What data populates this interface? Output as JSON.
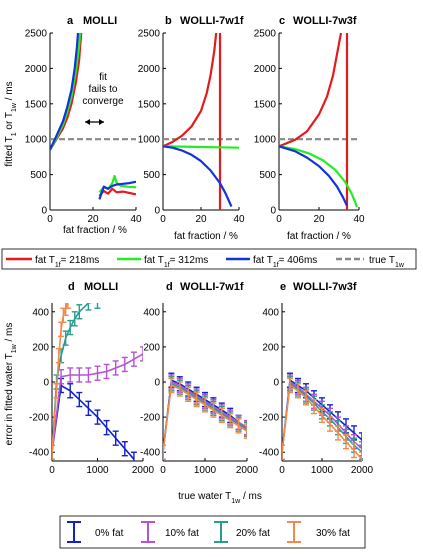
{
  "colors": {
    "red": "#e41a1c",
    "green": "#22ee22",
    "blue": "#1133dd",
    "gray": "#888888",
    "dblue": "#1122cc",
    "purple": "#b552d6",
    "teal": "#2a9d8f",
    "orange": "#f4894b"
  },
  "top_panels": {
    "ylabel_main": "fitted T",
    "ylabel_sub1": "1",
    "ylabel_mid": " or T",
    "ylabel_sub2": "1w",
    "ylabel_tail": " / ms",
    "xlabel": "fat fraction / %",
    "annotation": [
      "fit",
      "fails to",
      "converge"
    ]
  },
  "legend_top": [
    {
      "label": "fat T",
      "sub": "1f",
      "value": "= 218ms",
      "color": "red"
    },
    {
      "label": "fat T",
      "sub": "1f",
      "value": "= 312ms",
      "color": "green"
    },
    {
      "label": "fat T",
      "sub": "1f",
      "value": "= 406ms",
      "color": "blue"
    },
    {
      "label": "true T",
      "sub": "1w",
      "value": "",
      "color": "gray"
    }
  ],
  "bottom_panels": {
    "ylabel_main": "error in fitted water T",
    "ylabel_sub": "1w",
    "ylabel_tail": " / ms",
    "xlabel_main": "true water T",
    "xlabel_sub": "1w",
    "xlabel_tail": " / ms"
  },
  "legend_bottom": [
    {
      "label": "0% fat",
      "color": "dblue"
    },
    {
      "label": "10% fat",
      "color": "purple"
    },
    {
      "label": "20% fat",
      "color": "teal"
    },
    {
      "label": "30% fat",
      "color": "orange"
    }
  ],
  "chart_data": [
    {
      "type": "line",
      "panel": "a",
      "title": "MOLLI",
      "xlabel": "fat fraction / %",
      "ylabel": "fitted T1 or T1w / ms",
      "xlim": [
        0,
        40
      ],
      "ylim": [
        0,
        2500
      ],
      "xticks": [
        0,
        20,
        40
      ],
      "yticks": [
        0,
        500,
        1000,
        1500,
        2000,
        2500
      ],
      "reference": {
        "name": "true T1w",
        "y": 1000
      },
      "series": [
        {
          "name": "fat T1f = 218ms",
          "segments": [
            [
              [
                0,
                850
              ],
              [
                3,
                1000
              ],
              [
                6,
                1150
              ],
              [
                8,
                1300
              ],
              [
                10,
                1500
              ],
              [
                12,
                1800
              ],
              [
                13.5,
                2100
              ],
              [
                14.5,
                2500
              ]
            ],
            [
              [
                23,
                200
              ],
              [
                25,
                270
              ],
              [
                27,
                230
              ],
              [
                29,
                300
              ],
              [
                31,
                250
              ],
              [
                34,
                260
              ],
              [
                37,
                240
              ],
              [
                40,
                220
              ]
            ]
          ]
        },
        {
          "name": "fat T1f = 312ms",
          "segments": [
            [
              [
                0,
                850
              ],
              [
                3,
                1020
              ],
              [
                6,
                1200
              ],
              [
                8,
                1380
              ],
              [
                10,
                1600
              ],
              [
                12,
                1950
              ],
              [
                13.5,
                2300
              ],
              [
                14,
                2500
              ]
            ],
            [
              [
                23,
                250
              ],
              [
                25,
                320
              ],
              [
                27,
                300
              ],
              [
                29,
                380
              ],
              [
                30,
                480
              ],
              [
                31,
                380
              ],
              [
                33,
                340
              ],
              [
                36,
                330
              ],
              [
                40,
                320
              ]
            ]
          ]
        },
        {
          "name": "fat T1f = 406ms",
          "segments": [
            [
              [
                0,
                850
              ],
              [
                3,
                1050
              ],
              [
                6,
                1250
              ],
              [
                8,
                1450
              ],
              [
                10,
                1700
              ],
              [
                11.5,
                2000
              ],
              [
                12.5,
                2300
              ],
              [
                13,
                2500
              ]
            ],
            [
              [
                23,
                150
              ],
              [
                25,
                330
              ],
              [
                27,
                300
              ],
              [
                29,
                340
              ],
              [
                31,
                360
              ],
              [
                34,
                370
              ],
              [
                37,
                380
              ],
              [
                40,
                400
              ]
            ]
          ]
        }
      ]
    },
    {
      "type": "line",
      "panel": "b",
      "title": "WOLLI-7w1f",
      "xlabel": "fat fraction / %",
      "xlim": [
        0,
        40
      ],
      "ylim": [
        0,
        2500
      ],
      "xticks": [
        0,
        20,
        40
      ],
      "yticks": [
        0,
        500,
        1000,
        1500,
        2000,
        2500
      ],
      "reference": {
        "name": "true T1w",
        "y": 1000
      },
      "series": [
        {
          "name": "fat T1f = 218ms",
          "segments": [
            [
              [
                0,
                900
              ],
              [
                5,
                960
              ],
              [
                10,
                1050
              ],
              [
                15,
                1180
              ],
              [
                20,
                1400
              ],
              [
                23,
                1650
              ],
              [
                25,
                1900
              ],
              [
                27,
                2250
              ],
              [
                28,
                2500
              ]
            ],
            [
              [
                30,
                2500
              ],
              [
                30,
                0
              ]
            ]
          ]
        },
        {
          "name": "fat T1f = 312ms",
          "segments": [
            [
              [
                0,
                900
              ],
              [
                10,
                895
              ],
              [
                20,
                890
              ],
              [
                30,
                885
              ],
              [
                40,
                880
              ]
            ]
          ]
        },
        {
          "name": "fat T1f = 406ms",
          "segments": [
            [
              [
                0,
                900
              ],
              [
                5,
                880
              ],
              [
                10,
                840
              ],
              [
                15,
                780
              ],
              [
                20,
                690
              ],
              [
                25,
                560
              ],
              [
                30,
                380
              ],
              [
                33,
                230
              ],
              [
                36,
                50
              ]
            ]
          ]
        }
      ]
    },
    {
      "type": "line",
      "panel": "c",
      "title": "WOLLI-7w3f",
      "xlabel": "fat fraction / %",
      "xlim": [
        0,
        40
      ],
      "ylim": [
        0,
        2500
      ],
      "xticks": [
        0,
        20,
        40
      ],
      "yticks": [
        0,
        500,
        1000,
        1500,
        2000,
        2500
      ],
      "reference": {
        "name": "true T1w",
        "y": 1000
      },
      "series": [
        {
          "name": "fat T1f = 218ms",
          "segments": [
            [
              [
                0,
                900
              ],
              [
                8,
                990
              ],
              [
                14,
                1110
              ],
              [
                20,
                1350
              ],
              [
                24,
                1600
              ],
              [
                27,
                1900
              ],
              [
                29,
                2200
              ],
              [
                31,
                2500
              ]
            ],
            [
              [
                34,
                2500
              ],
              [
                34,
                0
              ]
            ]
          ]
        },
        {
          "name": "fat T1f = 312ms",
          "segments": [
            [
              [
                0,
                900
              ],
              [
                8,
                860
              ],
              [
                15,
                800
              ],
              [
                22,
                700
              ],
              [
                28,
                570
              ],
              [
                33,
                400
              ],
              [
                36,
                250
              ],
              [
                38,
                120
              ],
              [
                39,
                40
              ]
            ]
          ]
        },
        {
          "name": "fat T1f = 406ms",
          "segments": [
            [
              [
                0,
                900
              ],
              [
                8,
                830
              ],
              [
                14,
                740
              ],
              [
                20,
                620
              ],
              [
                25,
                480
              ],
              [
                29,
                330
              ],
              [
                32,
                180
              ],
              [
                34,
                60
              ]
            ]
          ]
        }
      ]
    },
    {
      "type": "line",
      "panel": "d",
      "title": "MOLLI",
      "ylabel": "error in fitted water T1w / ms",
      "xlim": [
        0,
        2000
      ],
      "ylim": [
        -450,
        450
      ],
      "xticks": [
        0,
        1000,
        2000
      ],
      "yticks": [
        -400,
        -200,
        0,
        200,
        400
      ],
      "series": [
        {
          "name": "0% fat",
          "x": [
            0,
            200,
            400,
            600,
            800,
            1000,
            1200,
            1400,
            1600,
            1800
          ],
          "y": [
            -400,
            -20,
            -50,
            -100,
            -150,
            -200,
            -260,
            -320,
            -380,
            -440
          ]
        },
        {
          "name": "10% fat",
          "x": [
            0,
            200,
            400,
            600,
            800,
            1000,
            1200,
            1400,
            1600,
            1800,
            2000
          ],
          "y": [
            -400,
            30,
            40,
            40,
            40,
            50,
            60,
            80,
            100,
            130,
            160
          ]
        },
        {
          "name": "20% fat",
          "x": [
            0,
            100,
            200,
            300,
            400,
            500,
            600,
            800,
            1000
          ],
          "y": [
            -400,
            0,
            150,
            250,
            310,
            360,
            400,
            450,
            460
          ]
        },
        {
          "name": "30% fat",
          "x": [
            0,
            100,
            150,
            200,
            250,
            300,
            350
          ],
          "y": [
            -400,
            -50,
            150,
            300,
            380,
            420,
            460
          ]
        }
      ]
    },
    {
      "type": "line",
      "panel": "d",
      "title": "WOLLI-7w1f",
      "xlim": [
        0,
        2000
      ],
      "ylim": [
        -450,
        450
      ],
      "xticks": [
        0,
        1000,
        2000
      ],
      "yticks": [
        -400,
        -200,
        0,
        200,
        400
      ],
      "series": [
        {
          "name": "0% fat",
          "x": [
            0,
            200,
            400,
            600,
            800,
            1000,
            1200,
            1400,
            1600,
            1800,
            2000
          ],
          "y": [
            -400,
            10,
            -10,
            -40,
            -70,
            -100,
            -130,
            -160,
            -190,
            -230,
            -260
          ]
        },
        {
          "name": "10% fat",
          "x": [
            0,
            200,
            400,
            600,
            800,
            1000,
            1200,
            1400,
            1600,
            1800,
            2000
          ],
          "y": [
            -400,
            0,
            -20,
            -50,
            -80,
            -110,
            -140,
            -170,
            -200,
            -230,
            -260
          ]
        },
        {
          "name": "20% fat",
          "x": [
            0,
            200,
            400,
            600,
            800,
            1000,
            1200,
            1400,
            1600,
            1800,
            2000
          ],
          "y": [
            -400,
            -10,
            -30,
            -60,
            -90,
            -120,
            -150,
            -180,
            -210,
            -240,
            -270
          ]
        },
        {
          "name": "30% fat",
          "x": [
            0,
            200,
            400,
            600,
            800,
            1000,
            1200,
            1400,
            1600,
            1800,
            2000
          ],
          "y": [
            -400,
            -20,
            -40,
            -70,
            -100,
            -130,
            -160,
            -190,
            -220,
            -250,
            -280
          ]
        }
      ]
    },
    {
      "type": "line",
      "panel": "e",
      "title": "WOLLI-7w3f",
      "xlim": [
        0,
        2000
      ],
      "ylim": [
        -450,
        450
      ],
      "xticks": [
        0,
        1000,
        2000
      ],
      "yticks": [
        -400,
        -200,
        0,
        200,
        400
      ],
      "series": [
        {
          "name": "0% fat",
          "x": [
            0,
            200,
            400,
            600,
            800,
            1000,
            1200,
            1400,
            1600,
            1800,
            2000
          ],
          "y": [
            -400,
            10,
            -20,
            -50,
            -90,
            -130,
            -170,
            -210,
            -250,
            -290,
            -330
          ]
        },
        {
          "name": "10% fat",
          "x": [
            0,
            200,
            400,
            600,
            800,
            1000,
            1200,
            1400,
            1600,
            1800,
            2000
          ],
          "y": [
            -400,
            0,
            -30,
            -70,
            -110,
            -150,
            -190,
            -240,
            -290,
            -340,
            -380
          ]
        },
        {
          "name": "20% fat",
          "x": [
            0,
            200,
            400,
            600,
            800,
            1000,
            1200,
            1400,
            1600,
            1800,
            2000
          ],
          "y": [
            -400,
            -10,
            -40,
            -80,
            -120,
            -170,
            -210,
            -260,
            -310,
            -360,
            -400
          ]
        },
        {
          "name": "30% fat",
          "x": [
            0,
            200,
            400,
            600,
            800,
            1000,
            1200,
            1400,
            1600,
            1800,
            2000
          ],
          "y": [
            -400,
            -20,
            -50,
            -90,
            -140,
            -190,
            -240,
            -290,
            -340,
            -390,
            -440
          ]
        }
      ]
    }
  ]
}
